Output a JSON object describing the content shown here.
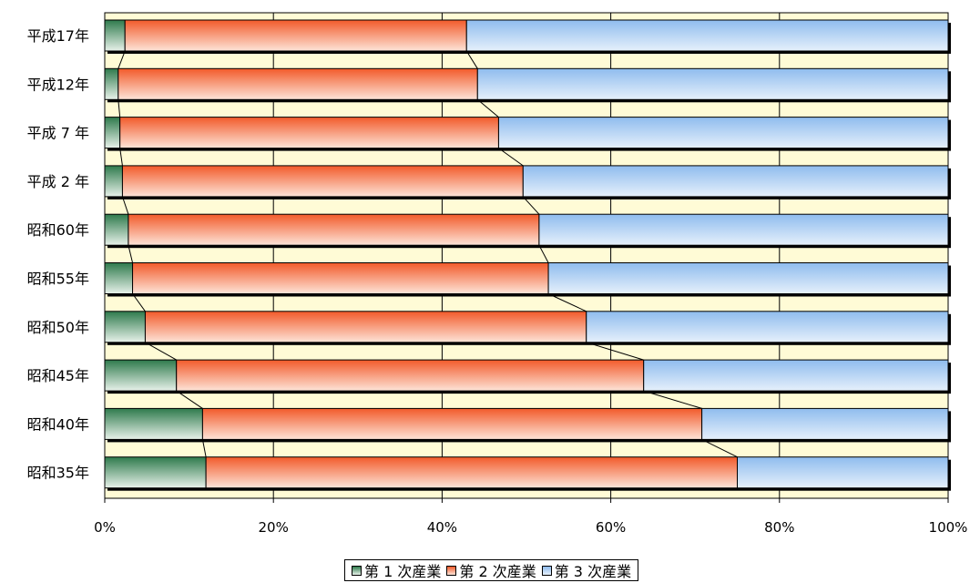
{
  "chart_data": {
    "type": "bar",
    "orientation": "horizontal",
    "stacked": "percent",
    "categories": [
      "平成17年",
      "平成12年",
      "平成 7 年",
      "平成 2 年",
      "昭和60年",
      "昭和55年",
      "昭和50年",
      "昭和45年",
      "昭和40年",
      "昭和35年"
    ],
    "series": [
      {
        "name": "第 1 次産業",
        "color": "#3d8a5c",
        "values": [
          2.4,
          1.6,
          1.8,
          2.1,
          2.8,
          3.3,
          4.8,
          8.5,
          11.6,
          12.0
        ]
      },
      {
        "name": "第 2 次産業",
        "color": "#f06838",
        "values": [
          40.5,
          42.6,
          44.9,
          47.5,
          48.7,
          49.3,
          52.3,
          55.4,
          59.2,
          63.0
        ]
      },
      {
        "name": "第 3 次産業",
        "color": "#9cc6f2",
        "values": [
          57.1,
          55.8,
          53.3,
          50.4,
          48.5,
          47.4,
          42.9,
          36.1,
          29.2,
          25.0
        ]
      }
    ],
    "x_ticks": [
      "0%",
      "20%",
      "40%",
      "60%",
      "80%",
      "100%"
    ],
    "xlim": [
      0,
      100
    ],
    "title": "",
    "xlabel": "",
    "ylabel": "",
    "grid": true,
    "series_lines": true,
    "plot_background": "#fffbd6",
    "legend_position": "bottom"
  }
}
